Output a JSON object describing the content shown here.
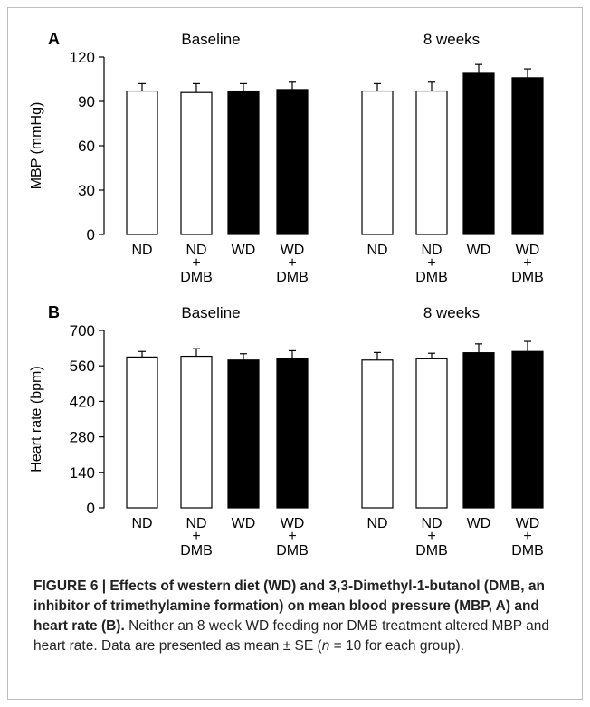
{
  "chart_data": [
    {
      "type": "bar",
      "panel_label": "A",
      "ylabel": "MBP (mmHg)",
      "ylim": [
        0,
        120
      ],
      "yticks": [
        "0",
        "30",
        "60",
        "90",
        "120"
      ],
      "groups": [
        {
          "label": "Baseline",
          "bars": [
            {
              "label": [
                "ND"
              ],
              "value": 97,
              "error": 5,
              "fill": "#ffffff"
            },
            {
              "label": [
                "ND",
                "+",
                "DMB"
              ],
              "value": 96,
              "error": 6,
              "fill": "#ffffff"
            },
            {
              "label": [
                "WD"
              ],
              "value": 97,
              "error": 5,
              "fill": "#000000"
            },
            {
              "label": [
                "WD",
                "+",
                "DMB"
              ],
              "value": 98,
              "error": 5,
              "fill": "#000000"
            }
          ]
        },
        {
          "label": "8 weeks",
          "bars": [
            {
              "label": [
                "ND"
              ],
              "value": 97,
              "error": 5,
              "fill": "#ffffff"
            },
            {
              "label": [
                "ND",
                "+",
                "DMB"
              ],
              "value": 97,
              "error": 6,
              "fill": "#ffffff"
            },
            {
              "label": [
                "WD"
              ],
              "value": 109,
              "error": 6,
              "fill": "#000000"
            },
            {
              "label": [
                "WD",
                "+",
                "DMB"
              ],
              "value": 106,
              "error": 6,
              "fill": "#000000"
            }
          ]
        }
      ]
    },
    {
      "type": "bar",
      "panel_label": "B",
      "ylabel": "Heart rate (bpm)",
      "ylim": [
        0,
        700
      ],
      "yticks": [
        "0",
        "140",
        "280",
        "420",
        "560",
        "700"
      ],
      "groups": [
        {
          "label": "Baseline",
          "bars": [
            {
              "label": [
                "ND"
              ],
              "value": 595,
              "error": 22,
              "fill": "#ffffff"
            },
            {
              "label": [
                "ND",
                "+",
                "DMB"
              ],
              "value": 598,
              "error": 30,
              "fill": "#ffffff"
            },
            {
              "label": [
                "WD"
              ],
              "value": 583,
              "error": 25,
              "fill": "#000000"
            },
            {
              "label": [
                "WD",
                "+",
                "DMB"
              ],
              "value": 590,
              "error": 30,
              "fill": "#000000"
            }
          ]
        },
        {
          "label": "8 weeks",
          "bars": [
            {
              "label": [
                "ND"
              ],
              "value": 583,
              "error": 30,
              "fill": "#ffffff"
            },
            {
              "label": [
                "ND",
                "+",
                "DMB"
              ],
              "value": 588,
              "error": 22,
              "fill": "#ffffff"
            },
            {
              "label": [
                "WD"
              ],
              "value": 612,
              "error": 35,
              "fill": "#000000"
            },
            {
              "label": [
                "WD",
                "+",
                "DMB"
              ],
              "value": 617,
              "error": 40,
              "fill": "#000000"
            }
          ]
        }
      ]
    }
  ],
  "caption": {
    "bold": "FIGURE 6 | Effects of western diet (WD) and 3,3-Dimethyl-1-butanol (DMB, an inhibitor of trimethylamine formation) on mean blood pressure (MBP, A) and heart rate (B).",
    "text": " Neither an 8 week WD feeding nor DMB treatment altered MBP and heart rate. Data are presented as mean ± SE (",
    "n": "n",
    "tail": " = 10 for each group)."
  }
}
